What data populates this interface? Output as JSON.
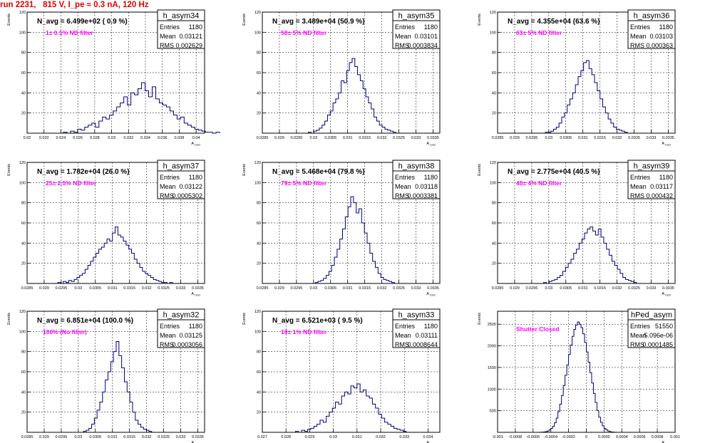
{
  "title": "run 2231,   815 V, I_pe ≈ 0.3 nA, 120 Hz",
  "colors": {
    "title": "#e00000",
    "histogram": "#000080",
    "annotation": "#ff00ff",
    "grid": "#000000"
  },
  "stat_labels": {
    "entries": "Entries",
    "mean": "Mean",
    "rms": "RMS"
  },
  "chart_data": [
    {
      "type": "histogram",
      "name": "h_asym34",
      "navg": "N_avg = 6.499e+02 ( 0.9 %)",
      "filter": "1± 0.1% ND filter",
      "stats": {
        "entries": "1180",
        "mean": "0.03121",
        "rms": "0.002629"
      },
      "ylabel": "Events",
      "xlabel": "A",
      "xlabel_sub": "LED",
      "xlim": [
        0.02,
        0.041
      ],
      "ylim": [
        0,
        120
      ],
      "xticks": [
        0.02,
        0.022,
        0.024,
        0.026,
        0.028,
        0.03,
        0.032,
        0.034,
        0.036,
        0.038,
        0.04
      ],
      "xticklabels": [
        "0.02",
        "0.022",
        "0.024",
        "0.026",
        "0.028",
        "0.03",
        "0.032",
        "0.034",
        "0.036",
        "0.038",
        "0.04"
      ],
      "yticks": [
        0,
        20,
        40,
        60,
        80,
        100,
        120
      ],
      "yticklabels": [
        "",
        "20",
        "40",
        "60",
        "80",
        "100",
        "120"
      ],
      "bins": {
        "start": 0.0243,
        "width": 0.00042,
        "counts": [
          1,
          0,
          2,
          1,
          4,
          3,
          6,
          8,
          10,
          6,
          12,
          16,
          14,
          18,
          22,
          26,
          30,
          36,
          28,
          40,
          38,
          44,
          50,
          42,
          36,
          46,
          34,
          30,
          28,
          26,
          22,
          18,
          14,
          16,
          10,
          8,
          6,
          4,
          3,
          2,
          1,
          1,
          0,
          1
        ]
      }
    },
    {
      "type": "histogram",
      "name": "h_asym35",
      "navg": "N_avg = 3.489e+04 (50.9 %)",
      "filter": "50± 5% ND filter",
      "stats": {
        "entries": "1180",
        "mean": "0.03101",
        "rms": "0.0003834"
      },
      "ylabel": "Events",
      "xlabel": "A",
      "xlabel_sub": "LED",
      "xlim": [
        0.0285,
        0.0337
      ],
      "ylim": [
        0,
        120
      ],
      "xticks": [
        0.0285,
        0.029,
        0.0295,
        0.03,
        0.0305,
        0.031,
        0.0315,
        0.032,
        0.0325,
        0.033,
        0.0335
      ],
      "xticklabels": [
        "0.0285",
        "0.029",
        "0.0295",
        "0.03",
        "0.0305",
        "0.031",
        "0.0315",
        "0.032",
        "0.0325",
        "0.033",
        "0.0335"
      ],
      "yticks": [
        0,
        20,
        40,
        60,
        80,
        100,
        120
      ],
      "yticklabels": [
        "",
        "20",
        "40",
        "60",
        "80",
        "100",
        "120"
      ],
      "bins": {
        "start": 0.02985,
        "width": 8e-05,
        "counts": [
          1,
          0,
          2,
          3,
          5,
          8,
          12,
          18,
          22,
          30,
          34,
          40,
          52,
          50,
          62,
          70,
          74,
          66,
          58,
          52,
          44,
          36,
          30,
          24,
          16,
          12,
          8,
          6,
          4,
          3,
          2,
          1
        ]
      }
    },
    {
      "type": "histogram",
      "name": "h_asym36",
      "navg": "N_avg = 4.355e+04 (63.6 %)",
      "filter": "63± 5% ND filter",
      "stats": {
        "entries": "1180",
        "mean": "0.03103",
        "rms": "0.000363"
      },
      "ylabel": "Events",
      "xlabel": "A",
      "xlabel_sub": "LED",
      "xlim": [
        0.0285,
        0.0337
      ],
      "ylim": [
        0,
        120
      ],
      "xticks": [
        0.0285,
        0.029,
        0.0295,
        0.03,
        0.0305,
        0.031,
        0.0315,
        0.032,
        0.0325,
        0.033,
        0.0335
      ],
      "xticklabels": [
        "0.0285",
        "0.029",
        "0.0295",
        "0.03",
        "0.0305",
        "0.031",
        "0.0315",
        "0.032",
        "0.0325",
        "0.033",
        "0.0335"
      ],
      "yticks": [
        0,
        20,
        40,
        60,
        80,
        100,
        120
      ],
      "yticklabels": [
        "",
        "20",
        "40",
        "60",
        "80",
        "100",
        "120"
      ],
      "bins": {
        "start": 0.0299,
        "width": 8e-05,
        "counts": [
          1,
          1,
          2,
          4,
          6,
          10,
          16,
          20,
          28,
          34,
          40,
          48,
          56,
          62,
          70,
          72,
          64,
          58,
          50,
          42,
          34,
          26,
          20,
          14,
          10,
          6,
          4,
          3,
          2,
          1
        ]
      }
    },
    {
      "type": "histogram",
      "name": "h_asym37",
      "navg": "N_avg = 1.782e+04 (26.0 %)",
      "filter": "25± 2.5% ND filter",
      "stats": {
        "entries": "1180",
        "mean": "0.03122",
        "rms": "0.0005302"
      },
      "ylabel": "Events",
      "xlabel": "A",
      "xlabel_sub": "LED",
      "xlim": [
        0.0285,
        0.0337
      ],
      "ylim": [
        0,
        120
      ],
      "xticks": [
        0.0285,
        0.029,
        0.0295,
        0.03,
        0.0305,
        0.031,
        0.0315,
        0.032,
        0.0325,
        0.033,
        0.0335
      ],
      "xticklabels": [
        "0.0285",
        "0.029",
        "0.0295",
        "0.03",
        "0.0305",
        "0.031",
        "0.0315",
        "0.032",
        "0.0325",
        "0.033",
        "0.0335"
      ],
      "yticks": [
        0,
        20,
        40,
        60,
        80,
        100,
        120
      ],
      "yticklabels": [
        "",
        "20",
        "40",
        "60",
        "80",
        "100",
        "120"
      ],
      "bins": {
        "start": 0.0294,
        "width": 8e-05,
        "counts": [
          1,
          0,
          2,
          1,
          3,
          2,
          4,
          6,
          8,
          10,
          14,
          18,
          22,
          26,
          30,
          34,
          36,
          40,
          44,
          42,
          50,
          56,
          48,
          46,
          42,
          38,
          34,
          30,
          24,
          20,
          16,
          12,
          10,
          8,
          6,
          4,
          3,
          2,
          1,
          1,
          0,
          1
        ]
      }
    },
    {
      "type": "histogram",
      "name": "h_asym38",
      "navg": "N_avg = 5.468e+04 (79.8 %)",
      "filter": "79± 5% ND filter",
      "stats": {
        "entries": "1180",
        "mean": "0.03118",
        "rms": "0.0003381"
      },
      "ylabel": "Events",
      "xlabel": "A",
      "xlabel_sub": "LED",
      "xlim": [
        0.0285,
        0.0337
      ],
      "ylim": [
        0,
        120
      ],
      "xticks": [
        0.0285,
        0.029,
        0.0295,
        0.03,
        0.0305,
        0.031,
        0.0315,
        0.032,
        0.0325,
        0.033,
        0.0335
      ],
      "xticklabels": [
        "0.0285",
        "0.029",
        "0.0295",
        "0.03",
        "0.0305",
        "0.031",
        "0.0315",
        "0.032",
        "0.0325",
        "0.033",
        "0.0335"
      ],
      "yticks": [
        0,
        20,
        40,
        60,
        80,
        100,
        120
      ],
      "yticklabels": [
        "",
        "20",
        "40",
        "60",
        "80",
        "100",
        "120"
      ],
      "bins": {
        "start": 0.03005,
        "width": 8e-05,
        "counts": [
          1,
          2,
          3,
          5,
          8,
          12,
          18,
          26,
          34,
          44,
          54,
          66,
          76,
          86,
          80,
          70,
          74,
          60,
          50,
          40,
          30,
          22,
          16,
          10,
          6,
          4,
          3,
          2,
          1
        ]
      }
    },
    {
      "type": "histogram",
      "name": "h_asym39",
      "navg": "N_avg = 2.775e+04 (40.5 %)",
      "filter": "40± 4% ND filter",
      "stats": {
        "entries": "1180",
        "mean": "0.03117",
        "rms": "0.000432"
      },
      "ylabel": "Events",
      "xlabel": "A",
      "xlabel_sub": "LED",
      "xlim": [
        0.0285,
        0.0337
      ],
      "ylim": [
        0,
        120
      ],
      "xticks": [
        0.0285,
        0.029,
        0.0295,
        0.03,
        0.0305,
        0.031,
        0.0315,
        0.032,
        0.0325,
        0.033,
        0.0335
      ],
      "xticklabels": [
        "0.0285",
        "0.029",
        "0.0295",
        "0.03",
        "0.0305",
        "0.031",
        "0.0315",
        "0.032",
        "0.0325",
        "0.033",
        "0.0335"
      ],
      "yticks": [
        0,
        20,
        40,
        60,
        80,
        100,
        120
      ],
      "yticklabels": [
        "",
        "20",
        "40",
        "60",
        "80",
        "100",
        "120"
      ],
      "bins": {
        "start": 0.02985,
        "width": 8e-05,
        "counts": [
          1,
          0,
          2,
          3,
          4,
          6,
          8,
          12,
          16,
          20,
          24,
          30,
          34,
          40,
          44,
          50,
          54,
          56,
          52,
          48,
          54,
          46,
          40,
          34,
          28,
          22,
          18,
          14,
          10,
          6,
          4,
          3,
          2,
          1
        ]
      }
    },
    {
      "type": "histogram",
      "name": "h_asym32",
      "navg": "N_avg = 6.851e+04 (100.0 %)",
      "filter": "100% (No filter)",
      "stats": {
        "entries": "1180",
        "mean": "0.03125",
        "rms": "0.0003056"
      },
      "ylabel": "Events",
      "xlabel": "A",
      "xlabel_sub": "LED",
      "xlim": [
        0.0285,
        0.0337
      ],
      "ylim": [
        0,
        120
      ],
      "xticks": [
        0.0285,
        0.029,
        0.0295,
        0.03,
        0.0305,
        0.031,
        0.0315,
        0.032,
        0.0325,
        0.033,
        0.0335
      ],
      "xticklabels": [
        "0.0285",
        "0.029",
        "0.0295",
        "0.03",
        "0.0305",
        "0.031",
        "0.0315",
        "0.032",
        "0.0325",
        "0.033",
        "0.0335"
      ],
      "yticks": [
        0,
        20,
        40,
        60,
        80,
        100,
        120
      ],
      "yticklabels": [
        "",
        "20",
        "40",
        "60",
        "80",
        "100",
        "120"
      ],
      "bins": {
        "start": 0.03015,
        "width": 8e-05,
        "counts": [
          1,
          2,
          4,
          8,
          14,
          22,
          30,
          40,
          52,
          60,
          70,
          80,
          90,
          76,
          64,
          50,
          40,
          30,
          20,
          12,
          8,
          5,
          3,
          2,
          1
        ]
      }
    },
    {
      "type": "histogram",
      "name": "h_asym33",
      "navg": "N_avg = 6.521e+03 ( 9.5 %)",
      "filter": "10± 1% ND filter",
      "stats": {
        "entries": "1180",
        "mean": "0.03111",
        "rms": "0.0008644"
      },
      "ylabel": "Events",
      "xlabel": "A",
      "xlabel_sub": "LED",
      "xlim": [
        0.027,
        0.0345
      ],
      "ylim": [
        0,
        120
      ],
      "xticks": [
        0.027,
        0.028,
        0.029,
        0.03,
        0.031,
        0.032,
        0.033,
        0.034
      ],
      "xticklabels": [
        "0.027",
        "0.028",
        "0.029",
        "0.03",
        "0.031",
        "0.032",
        "0.033",
        "0.034"
      ],
      "yticks": [
        0,
        20,
        40,
        60,
        80,
        100,
        120
      ],
      "yticklabels": [
        "",
        "20",
        "40",
        "60",
        "80",
        "100",
        "120"
      ],
      "bins": {
        "start": 0.0284,
        "width": 0.00013,
        "counts": [
          1,
          0,
          2,
          1,
          3,
          4,
          6,
          8,
          12,
          10,
          16,
          20,
          24,
          30,
          28,
          36,
          40,
          38,
          46,
          44,
          48,
          40,
          42,
          36,
          34,
          28,
          24,
          18,
          14,
          10,
          8,
          6,
          4,
          3,
          2,
          1
        ]
      }
    },
    {
      "type": "histogram",
      "name": "hPed_asym",
      "navg": "",
      "filter": "Shutter Closed",
      "stats": {
        "entries": "51550",
        "mean": "5.096e-06",
        "rms": "0.0001485"
      },
      "ylabel": "Events",
      "xlabel": "A",
      "xlabel_sub": "LED",
      "xlim": [
        -0.001,
        0.001
      ],
      "ylim": [
        0,
        2800
      ],
      "xticks": [
        -0.001,
        -0.0008,
        -0.0006,
        -0.0004,
        -0.0002,
        0,
        0.0002,
        0.0004,
        0.0006,
        0.0008,
        0.001
      ],
      "xticklabels": [
        "-0.001",
        "-0.0008",
        "-0.0006",
        "-0.0004",
        "-0.0002",
        "0",
        "0.0002",
        "0.0004",
        "0.0006",
        "0.0008",
        "0.001"
      ],
      "yticks": [
        0,
        500,
        1000,
        1500,
        2000,
        2500
      ],
      "yticklabels": [
        "",
        "500",
        "1000",
        "1500",
        "2000",
        "2500"
      ],
      "bins": {
        "start": -0.00052,
        "width": 2e-05,
        "counts": [
          2,
          4,
          8,
          16,
          30,
          55,
          90,
          140,
          220,
          330,
          480,
          650,
          850,
          1080,
          1320,
          1560,
          1800,
          2020,
          2220,
          2380,
          2480,
          2550,
          2500,
          2420,
          2280,
          2080,
          1860,
          1620,
          1380,
          1140,
          900,
          690,
          500,
          350,
          230,
          150,
          90,
          55,
          30,
          16,
          8,
          4,
          2,
          1
        ]
      }
    }
  ]
}
